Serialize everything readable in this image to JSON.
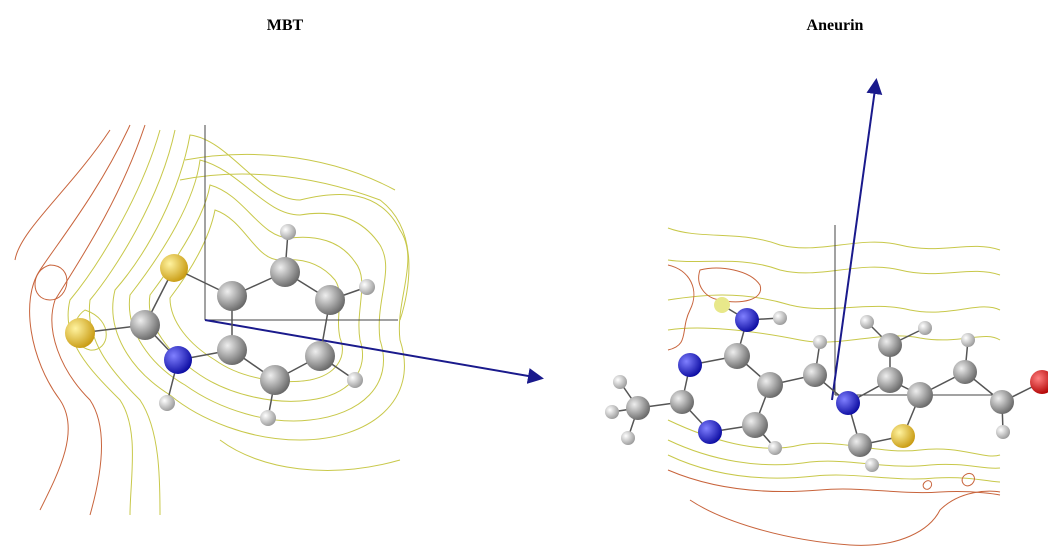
{
  "panels": [
    {
      "title": "MBT"
    },
    {
      "title": "Aneurin"
    }
  ]
}
